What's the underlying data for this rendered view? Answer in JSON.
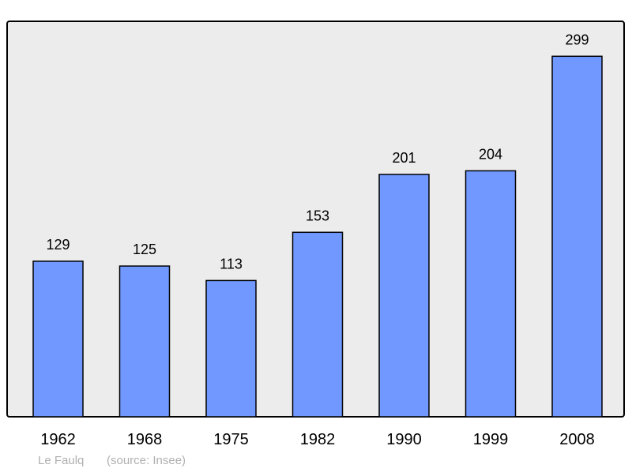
{
  "chart_data": {
    "type": "bar",
    "categories": [
      "1962",
      "1968",
      "1975",
      "1982",
      "1990",
      "1999",
      "2008"
    ],
    "values": [
      129,
      125,
      113,
      153,
      201,
      204,
      299
    ],
    "ylim": [
      0,
      328
    ],
    "grid": false,
    "colors": {
      "bar": "#7098ff",
      "plot_background": "#ececec",
      "outline": "#000000"
    }
  },
  "footer": {
    "place": "Le Faulq",
    "source": "(source: Insee)"
  }
}
